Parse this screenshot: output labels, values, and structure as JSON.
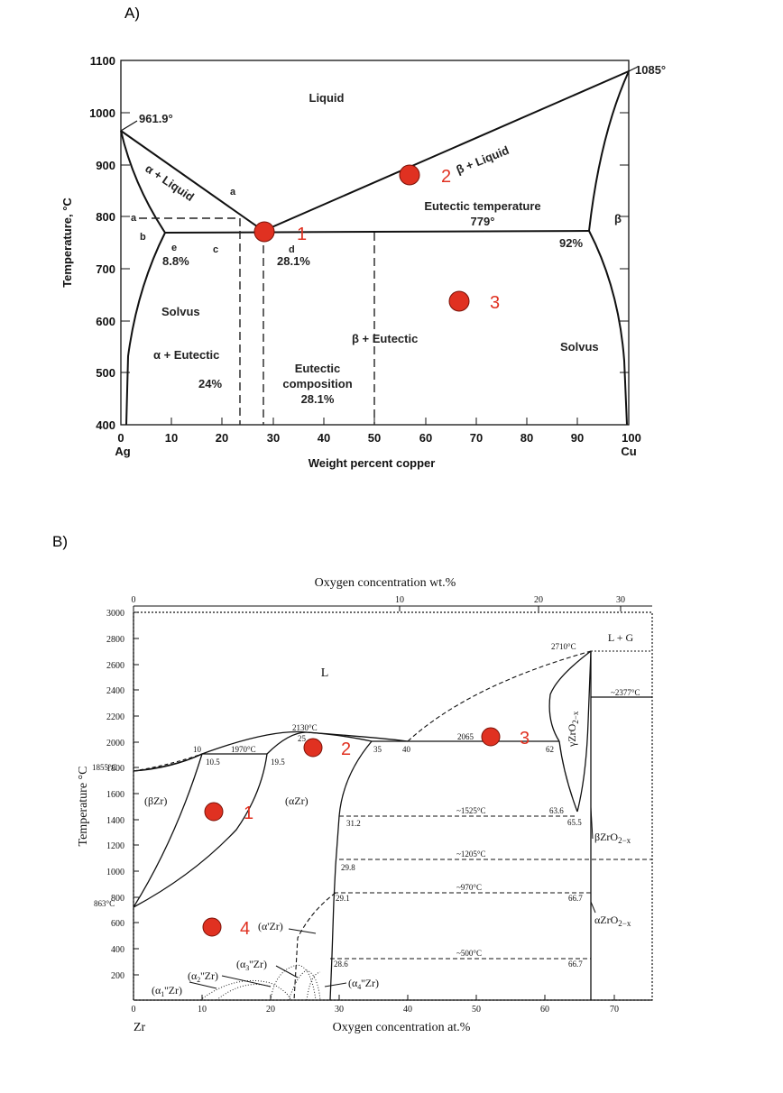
{
  "panel_a": {
    "label": "A)",
    "y_axis_title": "Temperature, °C",
    "x_axis_title": "Weight percent copper",
    "y_ticks": [
      "1100",
      "1000",
      "900",
      "800",
      "700",
      "600",
      "500",
      "400"
    ],
    "x_ticks": [
      "0",
      "10",
      "20",
      "30",
      "40",
      "50",
      "60",
      "70",
      "80",
      "90",
      "100"
    ],
    "x_end_left": "Ag",
    "x_end_right": "Cu",
    "regions": {
      "liquid": "Liquid",
      "alpha_liquid": "α + Liquid",
      "beta_liquid": "β + Liquid",
      "eutectic_temperature": "Eutectic temperature",
      "eutectic_temp_value": "779°",
      "beta": "β",
      "solvus_left": "Solvus",
      "solvus_right": "Solvus",
      "alpha_eutectic": "α + Eutectic",
      "beta_eutectic": "β + Eutectic",
      "eutectic_composition_1": "Eutectic",
      "eutectic_composition_2": "composition",
      "eutectic_composition_3": "28.1%"
    },
    "annotations": {
      "t_ag": "961.9°",
      "t_cu": "1085°",
      "p_a": "a",
      "p_a_left": "a",
      "p_b": "b",
      "p_c": "c",
      "p_d": "d",
      "p_e": "e",
      "pct_88": "8.8%",
      "pct_281": "28.1%",
      "pct_92": "92%",
      "pct_24": "24%"
    },
    "markers": [
      {
        "label": "1",
        "color": "#e03121"
      },
      {
        "label": "2",
        "color": "#e03121"
      },
      {
        "label": "3",
        "color": "#e03121"
      }
    ]
  },
  "panel_b": {
    "label": "B)",
    "top_axis_title": "Oxygen concentration wt.%",
    "top_ticks": [
      "0",
      "10",
      "20",
      "30"
    ],
    "bottom_axis_title": "Oxygen concentration  at.%",
    "bottom_ticks": [
      "0",
      "10",
      "20",
      "30",
      "40",
      "50",
      "60",
      "70"
    ],
    "bottom_left_label": "Zr",
    "y_axis_title": "Temperature  °C",
    "y_ticks": [
      "3000",
      "2800",
      "2600",
      "2400",
      "2200",
      "2000",
      "1800",
      "1600",
      "1400",
      "1200",
      "1000",
      "800",
      "600",
      "400",
      "200"
    ],
    "regions": {
      "L": "L",
      "LG": "L  +  G",
      "beta_zr": "(βZr)",
      "alpha_zr": "(αZr)",
      "alpha_prime_zr": "(α'Zr)",
      "gamma_zro2": "γZrO",
      "beta_zro2": "βZrO",
      "alpha_zro2": "αZrO",
      "sub_2x": "2−x",
      "a1": "(α",
      "a1_sub": "1",
      "a1_tail": "''Zr)",
      "a2": "(α",
      "a2_sub": "2",
      "a2_tail": "''Zr)",
      "a3": "(α",
      "a3_sub": "3",
      "a3_tail": "''Zr)",
      "a4": "(α",
      "a4_sub": "4",
      "a4_tail": "''Zr)"
    },
    "annotations": {
      "t2710": "2710°C",
      "t2377": "~2377°C",
      "t2130": "2130°C",
      "t2065": "2065",
      "t1970": "1970°C",
      "t1855": "1855°C",
      "t1525": "~1525°C",
      "t1205": "~1205°C",
      "t970": "~970°C",
      "t863": "863°C",
      "t500": "~500°C",
      "c10": "10",
      "c105": "10.5",
      "c195": "19.5",
      "c25": "25",
      "c35": "35",
      "c40": "40",
      "c62": "62",
      "c636": "63.6",
      "c655": "65.5",
      "c312": "31.2",
      "c298": "29.8",
      "c291": "29.1",
      "c667a": "66.7",
      "c286": "28.6",
      "c667b": "66.7"
    },
    "markers": [
      {
        "label": "1",
        "color": "#e03121"
      },
      {
        "label": "2",
        "color": "#e03121"
      },
      {
        "label": "3",
        "color": "#e03121"
      },
      {
        "label": "4",
        "color": "#e03121"
      }
    ]
  }
}
